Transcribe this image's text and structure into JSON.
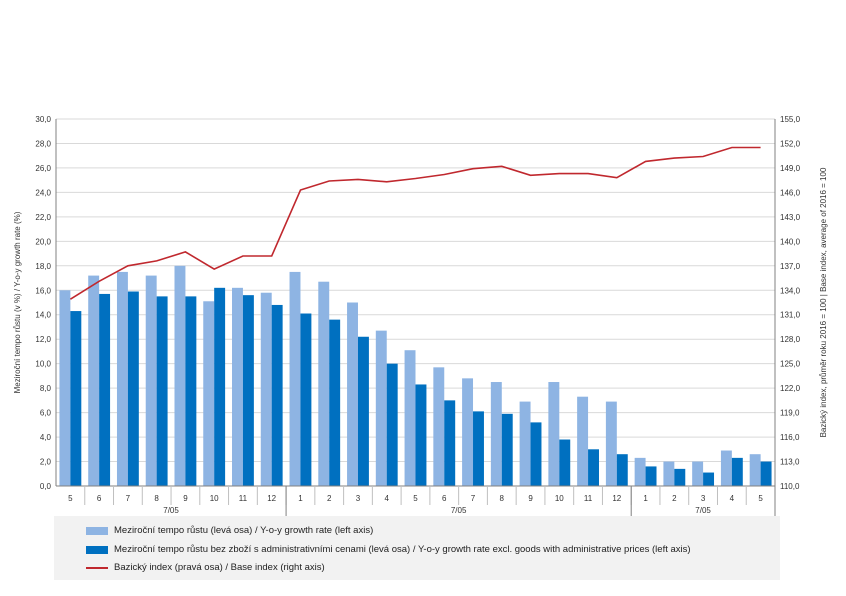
{
  "chart_data": {
    "type": "bar",
    "categories": [
      "5",
      "6",
      "7",
      "8",
      "9",
      "10",
      "11",
      "12",
      "1",
      "2",
      "3",
      "4",
      "5",
      "6",
      "7",
      "8",
      "9",
      "10",
      "11",
      "12",
      "1",
      "2",
      "3",
      "4",
      "5"
    ],
    "group_labels": [
      "7/05",
      "7/05",
      "7/05"
    ],
    "series": [
      {
        "name": "Meziroční tempo růstu (levá osa) / Y-o-y growth rate (left axis)",
        "type": "bar",
        "axis": "left",
        "color": "#8eb4e3",
        "values": [
          16.0,
          17.2,
          17.5,
          17.2,
          18.0,
          15.1,
          16.2,
          15.8,
          17.5,
          16.7,
          15.0,
          12.7,
          11.1,
          9.7,
          8.8,
          8.5,
          6.9,
          8.5,
          7.3,
          6.9,
          2.3,
          2.0,
          2.0,
          2.9,
          2.6
        ]
      },
      {
        "name": "Meziroční tempo růstu bez zboží s administrativními cenami (levá osa) / Y-o-y growth rate excl. goods with administrative prices (left axis)",
        "type": "bar",
        "axis": "left",
        "color": "#0070c0",
        "values": [
          14.3,
          15.7,
          15.9,
          15.5,
          15.5,
          16.2,
          15.6,
          14.8,
          14.1,
          13.6,
          12.2,
          10.0,
          8.3,
          7.0,
          6.1,
          5.9,
          5.2,
          3.8,
          3.0,
          2.6,
          1.6,
          1.4,
          1.1,
          2.3,
          2.0
        ]
      },
      {
        "name": "Bazický index (pravá osa) / Base index (right axis)",
        "type": "line",
        "axis": "right",
        "color": "#c0282e",
        "values": [
          132.9,
          135.1,
          137.0,
          137.6,
          138.7,
          136.6,
          138.2,
          138.2,
          146.3,
          147.4,
          147.6,
          147.3,
          147.7,
          148.2,
          148.9,
          149.2,
          148.1,
          148.3,
          148.3,
          147.8,
          149.8,
          150.2,
          150.4,
          151.5,
          151.5
        ]
      }
    ],
    "y_left": {
      "label": "Meziroční tempo růstu (v %) / Y-o-y growth rate (%)",
      "min": 0,
      "max": 30,
      "step": 2,
      "ticks": [
        "0,0",
        "2,0",
        "4,0",
        "6,0",
        "8,0",
        "10,0",
        "12,0",
        "14,0",
        "16,0",
        "18,0",
        "20,0",
        "22,0",
        "24,0",
        "26,0",
        "28,0",
        "30,0"
      ]
    },
    "y_right": {
      "label": "Bazický index, průměr roku 2016 = 100 | Base index, average of 2016 = 100",
      "min": 110,
      "max": 155,
      "step": 3,
      "ticks": [
        "110,0",
        "113,0",
        "116,0",
        "119,0",
        "122,0",
        "125,0",
        "128,0",
        "131,0",
        "134,0",
        "137,0",
        "140,0",
        "143,0",
        "146,0",
        "149,0",
        "152,0",
        "155,0"
      ]
    },
    "grid": true,
    "legend_position": "bottom"
  },
  "legend": {
    "item1": "Meziroční tempo růstu (levá osa) / Y-o-y growth rate (left axis)",
    "item2": "Meziroční tempo růstu bez zboží s administrativními cenami (levá osa) / Y-o-y growth rate excl. goods with administrative prices (left axis)",
    "item3": "Bazický index (pravá osa) / Base index (right axis)"
  }
}
